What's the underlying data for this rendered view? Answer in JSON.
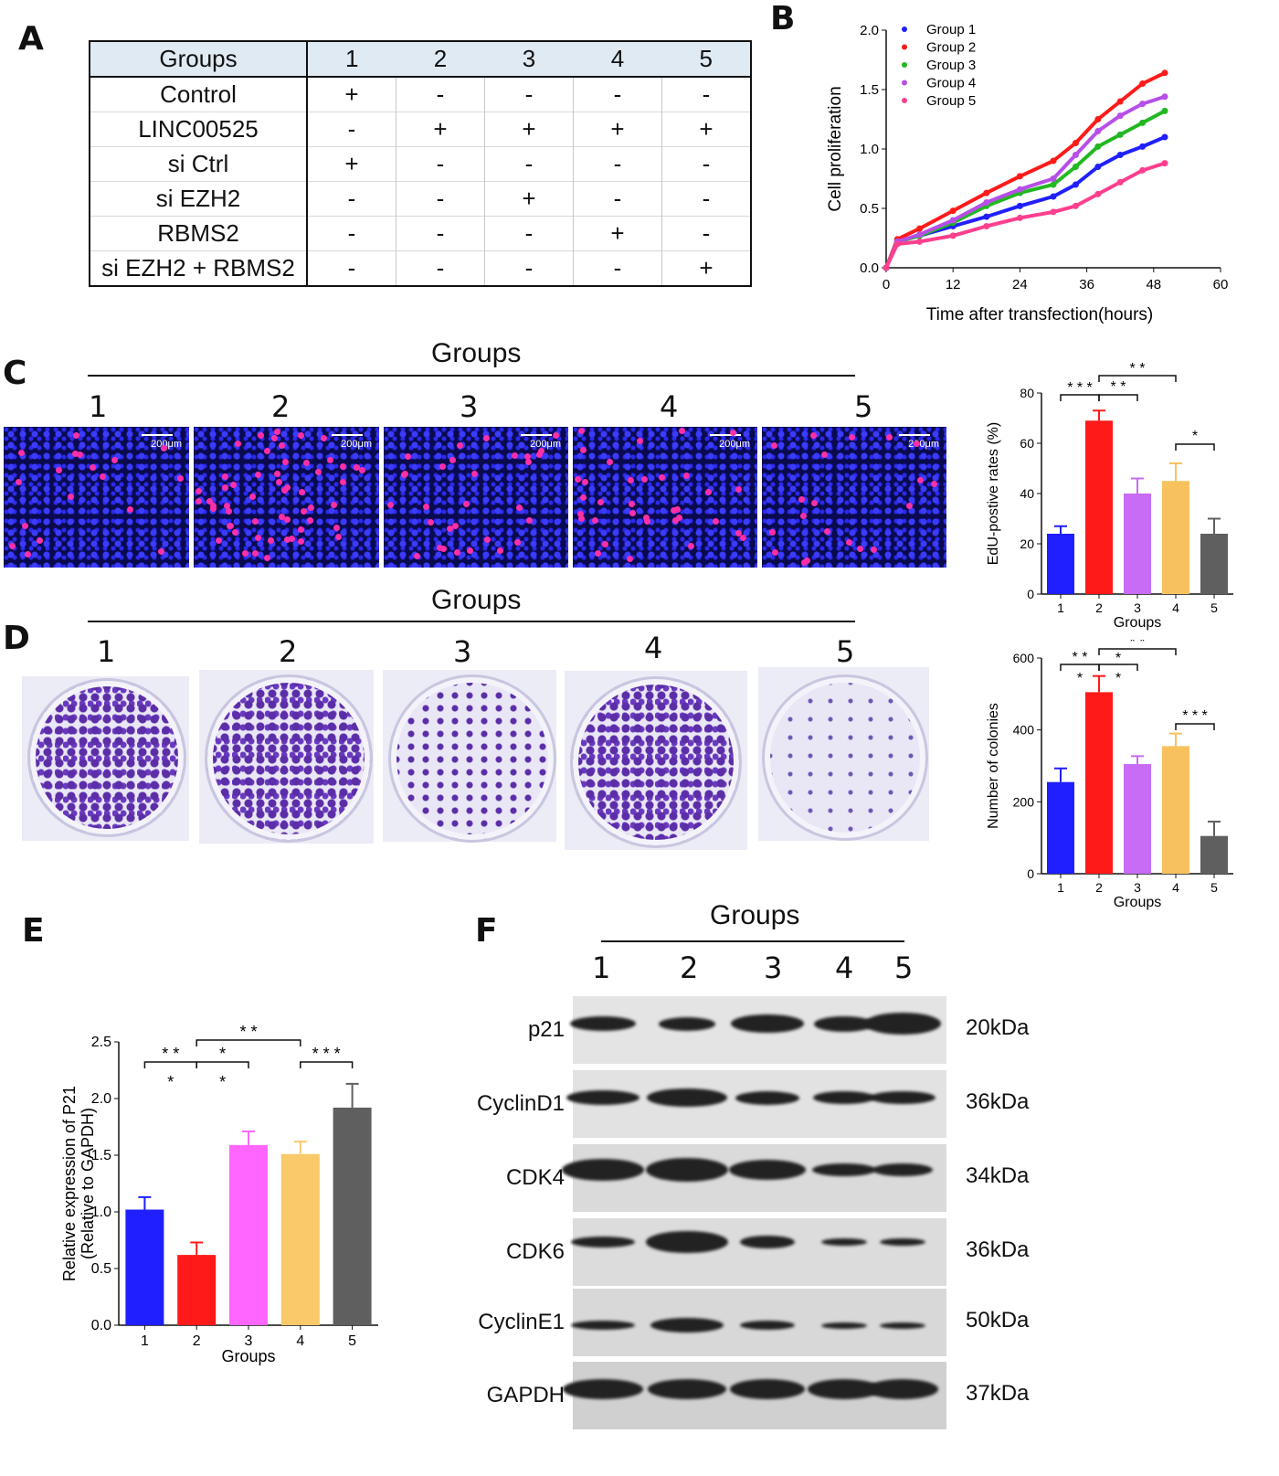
{
  "panels": {
    "a": "A",
    "b": "B",
    "c": "C",
    "d": "D",
    "e": "E",
    "f": "F"
  },
  "table_a": {
    "header": [
      "Groups",
      "1",
      "2",
      "3",
      "4",
      "5"
    ],
    "rows": [
      {
        "label": "Control",
        "cells": [
          "+",
          "-",
          "-",
          "-",
          "-"
        ]
      },
      {
        "label": "LINC00525",
        "cells": [
          "-",
          "+",
          "+",
          "+",
          "+"
        ]
      },
      {
        "label": "si Ctrl",
        "cells": [
          "+",
          "-",
          "-",
          "-",
          "-"
        ]
      },
      {
        "label": "si EZH2",
        "cells": [
          "-",
          "-",
          "+",
          "-",
          "-"
        ]
      },
      {
        "label": "RBMS2",
        "cells": [
          "-",
          "-",
          "-",
          "+",
          "-"
        ]
      },
      {
        "label": "si EZH2 + RBMS2",
        "cells": [
          "-",
          "-",
          "-",
          "-",
          "+"
        ]
      }
    ]
  },
  "groups_title": "Groups",
  "group_numbers": [
    "1",
    "2",
    "3",
    "4",
    "5"
  ],
  "scale_bar_label": "200μm",
  "western_blot": {
    "proteins": [
      {
        "name": "p21",
        "kda": "20kDa"
      },
      {
        "name": "CyclinD1",
        "kda": "36kDa"
      },
      {
        "name": "CDK4",
        "kda": "34kDa"
      },
      {
        "name": "CDK6",
        "kda": "36kDa"
      },
      {
        "name": "CyclinE1",
        "kda": "50kDa"
      },
      {
        "name": "GAPDH",
        "kda": "37kDa"
      }
    ]
  },
  "colors": {
    "group1": "#1f1fff",
    "group2": "#ff1a1a",
    "group3_line": "#22b822",
    "group4_line": "#b64fe8",
    "group5_line": "#ff3f8e",
    "bar3_c": "#c86bf5",
    "bar4_c": "#f7c25e",
    "bar5": "#5f5f5f",
    "bar3_e": "#ff66ff",
    "bar4_e": "#f9c96a"
  },
  "chart_data": [
    {
      "id": "B",
      "type": "line",
      "xlabel": "Time after transfection(hours)",
      "ylabel": "Cell proliferation",
      "xlim": [
        0,
        60
      ],
      "ylim": [
        0,
        2.0
      ],
      "xticks": [
        "0",
        "12",
        "24",
        "36",
        "48",
        "60"
      ],
      "yticks": [
        "0.0",
        "0.5",
        "1.0",
        "1.5",
        "2.0"
      ],
      "legend_position": "top-left",
      "x": [
        0,
        2,
        6,
        12,
        18,
        24,
        30,
        34,
        38,
        42,
        46,
        50
      ],
      "series": [
        {
          "name": "Group 1",
          "marker": "circle",
          "values": [
            0.0,
            0.22,
            0.27,
            0.35,
            0.43,
            0.52,
            0.6,
            0.7,
            0.85,
            0.95,
            1.02,
            1.1
          ]
        },
        {
          "name": "Group 2",
          "marker": "square",
          "values": [
            0.0,
            0.24,
            0.33,
            0.48,
            0.63,
            0.77,
            0.9,
            1.05,
            1.25,
            1.4,
            1.55,
            1.64
          ]
        },
        {
          "name": "Group 3",
          "marker": "triangle",
          "values": [
            0.0,
            0.22,
            0.27,
            0.38,
            0.52,
            0.63,
            0.7,
            0.85,
            1.02,
            1.12,
            1.22,
            1.32
          ]
        },
        {
          "name": "Group 4",
          "marker": "triangle-down",
          "values": [
            0.0,
            0.22,
            0.28,
            0.4,
            0.55,
            0.66,
            0.75,
            0.95,
            1.15,
            1.28,
            1.38,
            1.44
          ]
        },
        {
          "name": "Group 5",
          "marker": "diamond",
          "values": [
            0.0,
            0.2,
            0.22,
            0.27,
            0.35,
            0.42,
            0.47,
            0.52,
            0.62,
            0.72,
            0.82,
            0.88
          ]
        }
      ]
    },
    {
      "id": "C",
      "type": "bar",
      "xlabel": "Groups",
      "ylabel": "EdU-postive rates (%)",
      "ylim": [
        0,
        80
      ],
      "yticks": [
        "0",
        "20",
        "40",
        "60",
        "80"
      ],
      "categories": [
        "1",
        "2",
        "3",
        "4",
        "5"
      ],
      "values": [
        24,
        69,
        40,
        45,
        24
      ],
      "errors": [
        3,
        4,
        6,
        7,
        6
      ],
      "significance": [
        {
          "from": 0,
          "to": 1,
          "label": "* * *"
        },
        {
          "from": 1,
          "to": 2,
          "label": "* *"
        },
        {
          "from": 1,
          "to": 3,
          "label": "* *"
        },
        {
          "from": 3,
          "to": 4,
          "label": "*"
        }
      ]
    },
    {
      "id": "D",
      "type": "bar",
      "xlabel": "Groups",
      "ylabel": "Number of colonies",
      "ylim": [
        0,
        600
      ],
      "yticks": [
        "0",
        "200",
        "400",
        "600"
      ],
      "categories": [
        "1",
        "2",
        "3",
        "4",
        "5"
      ],
      "values": [
        255,
        505,
        305,
        355,
        105
      ],
      "errors": [
        38,
        45,
        22,
        35,
        40
      ],
      "significance": [
        {
          "from": 0,
          "to": 1,
          "label": "* *"
        },
        {
          "from": 0,
          "to": 1,
          "label": "*"
        },
        {
          "from": 1,
          "to": 2,
          "label": "*"
        },
        {
          "from": 1,
          "to": 2,
          "label": "*"
        },
        {
          "from": 1,
          "to": 3,
          "label": "* *"
        },
        {
          "from": 3,
          "to": 4,
          "label": "* * *"
        }
      ]
    },
    {
      "id": "E",
      "type": "bar",
      "xlabel": "Groups",
      "ylabel": "Relative  expression of P21",
      "ylabel2": "(Relative to GAPDH)",
      "ylim": [
        0,
        2.5
      ],
      "yticks": [
        "0.0",
        "0.5",
        "1.0",
        "1.5",
        "2.0",
        "2.5"
      ],
      "categories": [
        "1",
        "2",
        "3",
        "4",
        "5"
      ],
      "values": [
        1.02,
        0.62,
        1.59,
        1.51,
        1.92
      ],
      "errors": [
        0.11,
        0.11,
        0.12,
        0.11,
        0.21
      ],
      "significance": [
        {
          "from": 0,
          "to": 1,
          "label": "* *"
        },
        {
          "from": 0,
          "to": 1,
          "label": "*"
        },
        {
          "from": 1,
          "to": 2,
          "label": "*"
        },
        {
          "from": 1,
          "to": 2,
          "label": "*"
        },
        {
          "from": 1,
          "to": 3,
          "label": "* *"
        },
        {
          "from": 3,
          "to": 4,
          "label": "* * *"
        }
      ]
    }
  ]
}
